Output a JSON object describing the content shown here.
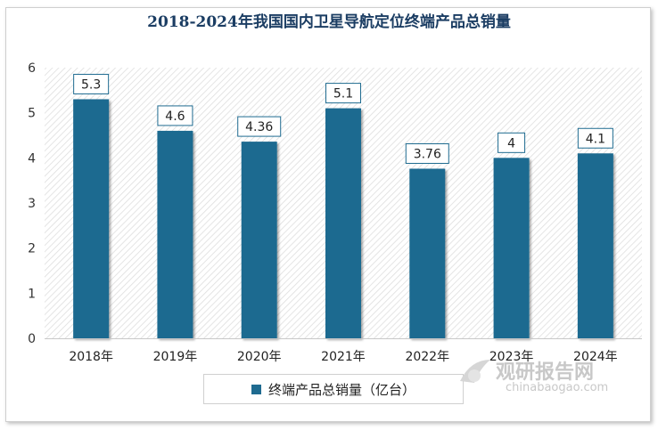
{
  "chart_data": {
    "type": "bar",
    "title": "2018-2024年我国国内卫星导航定位终端产品总销量",
    "categories": [
      "2018年",
      "2019年",
      "2020年",
      "2021年",
      "2022年",
      "2023年",
      "2024年"
    ],
    "series": [
      {
        "name": "终端产品总销量（亿台）",
        "values": [
          5.3,
          4.6,
          4.36,
          5.1,
          3.76,
          4,
          4.1
        ],
        "labels": [
          "5.3",
          "4.6",
          "4.36",
          "5.1",
          "3.76",
          "4",
          "4.1"
        ]
      }
    ],
    "y_ticks": [
      "0",
      "1",
      "2",
      "3",
      "4",
      "5",
      "6"
    ],
    "ylim": [
      0,
      6
    ],
    "xlabel": "",
    "ylabel": "",
    "legend_position": "bottom",
    "bar_color": "#1f6b90"
  },
  "watermark": {
    "brand": "观研报告网",
    "url": "chinabaogao.com"
  }
}
